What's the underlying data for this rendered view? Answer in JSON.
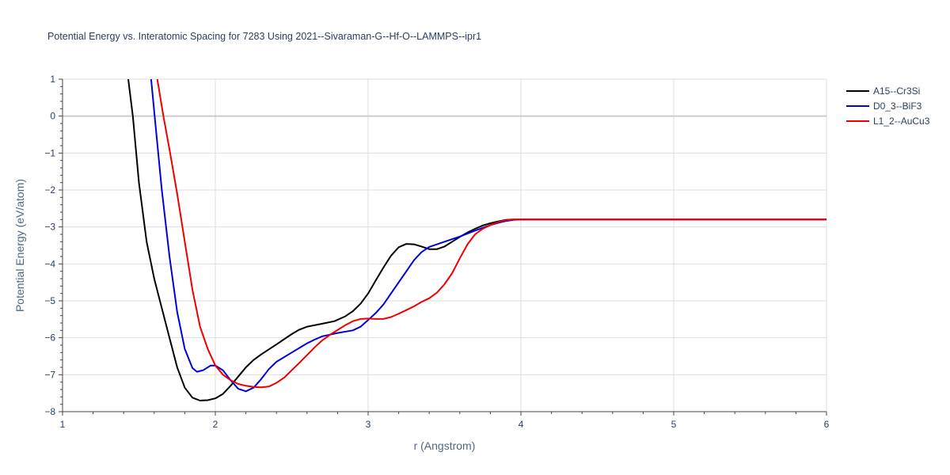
{
  "chart_data": {
    "type": "line",
    "title": "Potential Energy vs. Interatomic Spacing for 7283 Using 2021--Sivaraman-G--Hf-O--LAMMPS--ipr1",
    "xlabel": "r (Angstrom)",
    "ylabel": "Potential Energy (eV/atom)",
    "xlim": [
      1,
      6
    ],
    "ylim": [
      -8,
      1
    ],
    "xticks": [
      1,
      2,
      3,
      4,
      5,
      6
    ],
    "xtick_labels": [
      "1",
      "2",
      "3",
      "4",
      "5",
      "6"
    ],
    "yticks": [
      1,
      0,
      -1,
      -2,
      -3,
      -4,
      -5,
      -6,
      -7,
      -8
    ],
    "ytick_labels": [
      "1",
      "0",
      "−1",
      "−2",
      "−3",
      "−4",
      "−5",
      "−6",
      "−7",
      "−8"
    ],
    "grid": true,
    "legend_position": "top-right",
    "series": [
      {
        "name": "A15--Cr3Si",
        "color": "#000000",
        "points": [
          [
            1.43,
            1.0
          ],
          [
            1.46,
            0.0
          ],
          [
            1.5,
            -1.8
          ],
          [
            1.55,
            -3.4
          ],
          [
            1.6,
            -4.4
          ],
          [
            1.65,
            -5.2
          ],
          [
            1.7,
            -6.0
          ],
          [
            1.75,
            -6.8
          ],
          [
            1.8,
            -7.35
          ],
          [
            1.85,
            -7.62
          ],
          [
            1.9,
            -7.7
          ],
          [
            1.95,
            -7.69
          ],
          [
            2.0,
            -7.64
          ],
          [
            2.05,
            -7.52
          ],
          [
            2.1,
            -7.3
          ],
          [
            2.15,
            -7.05
          ],
          [
            2.2,
            -6.8
          ],
          [
            2.25,
            -6.6
          ],
          [
            2.3,
            -6.45
          ],
          [
            2.4,
            -6.18
          ],
          [
            2.5,
            -5.9
          ],
          [
            2.55,
            -5.78
          ],
          [
            2.6,
            -5.7
          ],
          [
            2.7,
            -5.62
          ],
          [
            2.78,
            -5.55
          ],
          [
            2.85,
            -5.42
          ],
          [
            2.9,
            -5.28
          ],
          [
            2.95,
            -5.08
          ],
          [
            3.0,
            -4.8
          ],
          [
            3.05,
            -4.45
          ],
          [
            3.1,
            -4.1
          ],
          [
            3.15,
            -3.78
          ],
          [
            3.2,
            -3.55
          ],
          [
            3.25,
            -3.46
          ],
          [
            3.3,
            -3.47
          ],
          [
            3.35,
            -3.53
          ],
          [
            3.4,
            -3.6
          ],
          [
            3.45,
            -3.6
          ],
          [
            3.5,
            -3.53
          ],
          [
            3.55,
            -3.4
          ],
          [
            3.6,
            -3.27
          ],
          [
            3.65,
            -3.15
          ],
          [
            3.7,
            -3.05
          ],
          [
            3.75,
            -2.96
          ],
          [
            3.8,
            -2.9
          ],
          [
            3.85,
            -2.85
          ],
          [
            3.9,
            -2.81
          ],
          [
            3.95,
            -2.8
          ],
          [
            4.0,
            -2.8
          ],
          [
            5.0,
            -2.8
          ],
          [
            6.0,
            -2.8
          ]
        ]
      },
      {
        "name": "D0_3--BiF3",
        "color": "#0000dd",
        "points": [
          [
            1.58,
            1.0
          ],
          [
            1.61,
            -0.3
          ],
          [
            1.65,
            -2.0
          ],
          [
            1.7,
            -3.8
          ],
          [
            1.75,
            -5.3
          ],
          [
            1.8,
            -6.3
          ],
          [
            1.85,
            -6.82
          ],
          [
            1.88,
            -6.92
          ],
          [
            1.92,
            -6.88
          ],
          [
            1.97,
            -6.75
          ],
          [
            2.0,
            -6.75
          ],
          [
            2.05,
            -6.88
          ],
          [
            2.1,
            -7.15
          ],
          [
            2.15,
            -7.38
          ],
          [
            2.2,
            -7.45
          ],
          [
            2.25,
            -7.35
          ],
          [
            2.3,
            -7.12
          ],
          [
            2.35,
            -6.85
          ],
          [
            2.4,
            -6.65
          ],
          [
            2.5,
            -6.4
          ],
          [
            2.6,
            -6.15
          ],
          [
            2.65,
            -6.05
          ],
          [
            2.7,
            -5.96
          ],
          [
            2.8,
            -5.87
          ],
          [
            2.9,
            -5.8
          ],
          [
            2.95,
            -5.7
          ],
          [
            3.0,
            -5.52
          ],
          [
            3.05,
            -5.33
          ],
          [
            3.1,
            -5.1
          ],
          [
            3.15,
            -4.8
          ],
          [
            3.2,
            -4.5
          ],
          [
            3.25,
            -4.2
          ],
          [
            3.3,
            -3.9
          ],
          [
            3.35,
            -3.68
          ],
          [
            3.4,
            -3.54
          ],
          [
            3.5,
            -3.4
          ],
          [
            3.6,
            -3.26
          ],
          [
            3.7,
            -3.1
          ],
          [
            3.8,
            -2.95
          ],
          [
            3.85,
            -2.89
          ],
          [
            3.9,
            -2.84
          ],
          [
            3.95,
            -2.81
          ],
          [
            4.0,
            -2.8
          ],
          [
            5.0,
            -2.8
          ],
          [
            6.0,
            -2.8
          ]
        ]
      },
      {
        "name": "L1_2--AuCu3",
        "color": "#ee0000",
        "points": [
          [
            1.62,
            1.0
          ],
          [
            1.66,
            0.0
          ],
          [
            1.7,
            -0.9
          ],
          [
            1.75,
            -2.1
          ],
          [
            1.8,
            -3.4
          ],
          [
            1.85,
            -4.7
          ],
          [
            1.9,
            -5.7
          ],
          [
            1.95,
            -6.3
          ],
          [
            2.0,
            -6.75
          ],
          [
            2.05,
            -7.0
          ],
          [
            2.1,
            -7.15
          ],
          [
            2.15,
            -7.25
          ],
          [
            2.2,
            -7.3
          ],
          [
            2.25,
            -7.33
          ],
          [
            2.3,
            -7.34
          ],
          [
            2.35,
            -7.32
          ],
          [
            2.4,
            -7.22
          ],
          [
            2.45,
            -7.08
          ],
          [
            2.5,
            -6.88
          ],
          [
            2.55,
            -6.68
          ],
          [
            2.6,
            -6.47
          ],
          [
            2.65,
            -6.26
          ],
          [
            2.7,
            -6.07
          ],
          [
            2.75,
            -5.92
          ],
          [
            2.8,
            -5.79
          ],
          [
            2.85,
            -5.66
          ],
          [
            2.9,
            -5.55
          ],
          [
            2.95,
            -5.49
          ],
          [
            3.0,
            -5.48
          ],
          [
            3.05,
            -5.49
          ],
          [
            3.1,
            -5.49
          ],
          [
            3.15,
            -5.44
          ],
          [
            3.2,
            -5.35
          ],
          [
            3.25,
            -5.25
          ],
          [
            3.3,
            -5.15
          ],
          [
            3.35,
            -5.03
          ],
          [
            3.4,
            -4.93
          ],
          [
            3.45,
            -4.78
          ],
          [
            3.5,
            -4.55
          ],
          [
            3.55,
            -4.25
          ],
          [
            3.6,
            -3.85
          ],
          [
            3.65,
            -3.47
          ],
          [
            3.7,
            -3.2
          ],
          [
            3.75,
            -3.05
          ],
          [
            3.8,
            -2.95
          ],
          [
            3.85,
            -2.87
          ],
          [
            3.9,
            -2.82
          ],
          [
            3.95,
            -2.8
          ],
          [
            4.0,
            -2.8
          ],
          [
            5.0,
            -2.8
          ],
          [
            6.0,
            -2.8
          ]
        ]
      }
    ]
  }
}
